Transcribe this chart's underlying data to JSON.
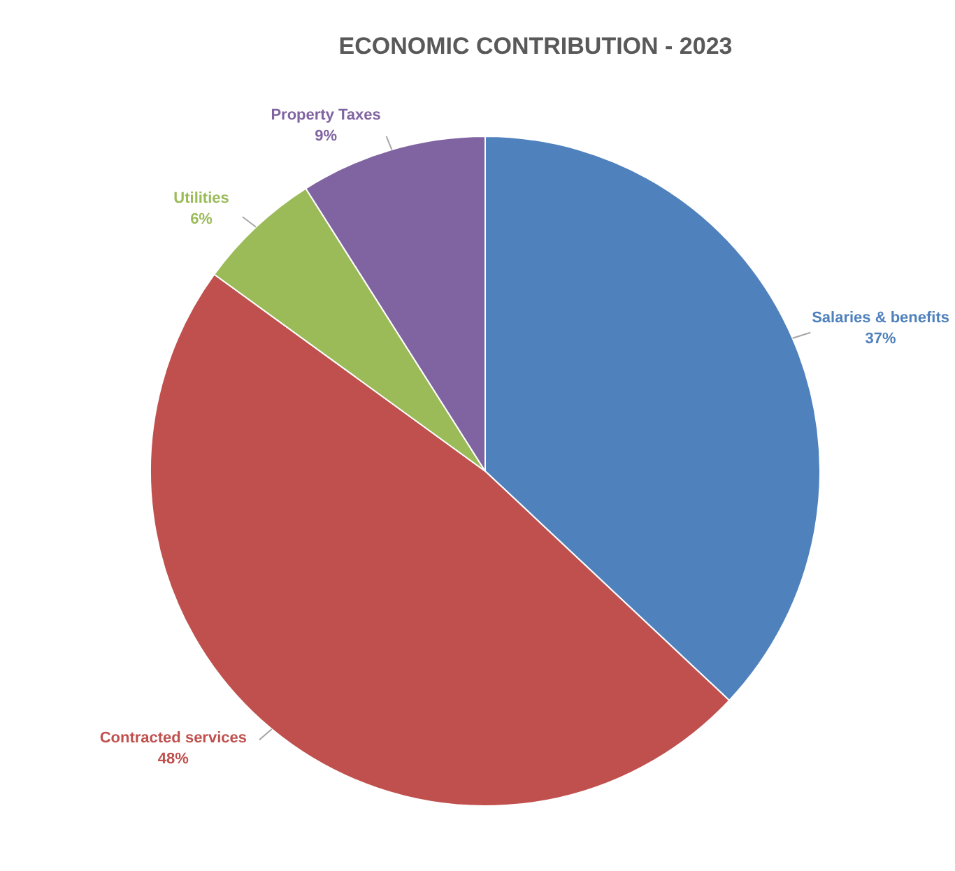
{
  "chart_data": {
    "type": "pie",
    "title": "ECONOMIC CONTRIBUTION - 2023",
    "categories": [
      "Salaries & benefits",
      "Contracted services",
      "Utilities",
      "Property Taxes"
    ],
    "values": [
      37,
      48,
      6,
      9
    ],
    "colors": [
      "#4f81bd",
      "#c0504d",
      "#9bbb59",
      "#8064a2"
    ],
    "value_labels": [
      "37%",
      "48%",
      "6%",
      "9%"
    ],
    "legend": false
  }
}
